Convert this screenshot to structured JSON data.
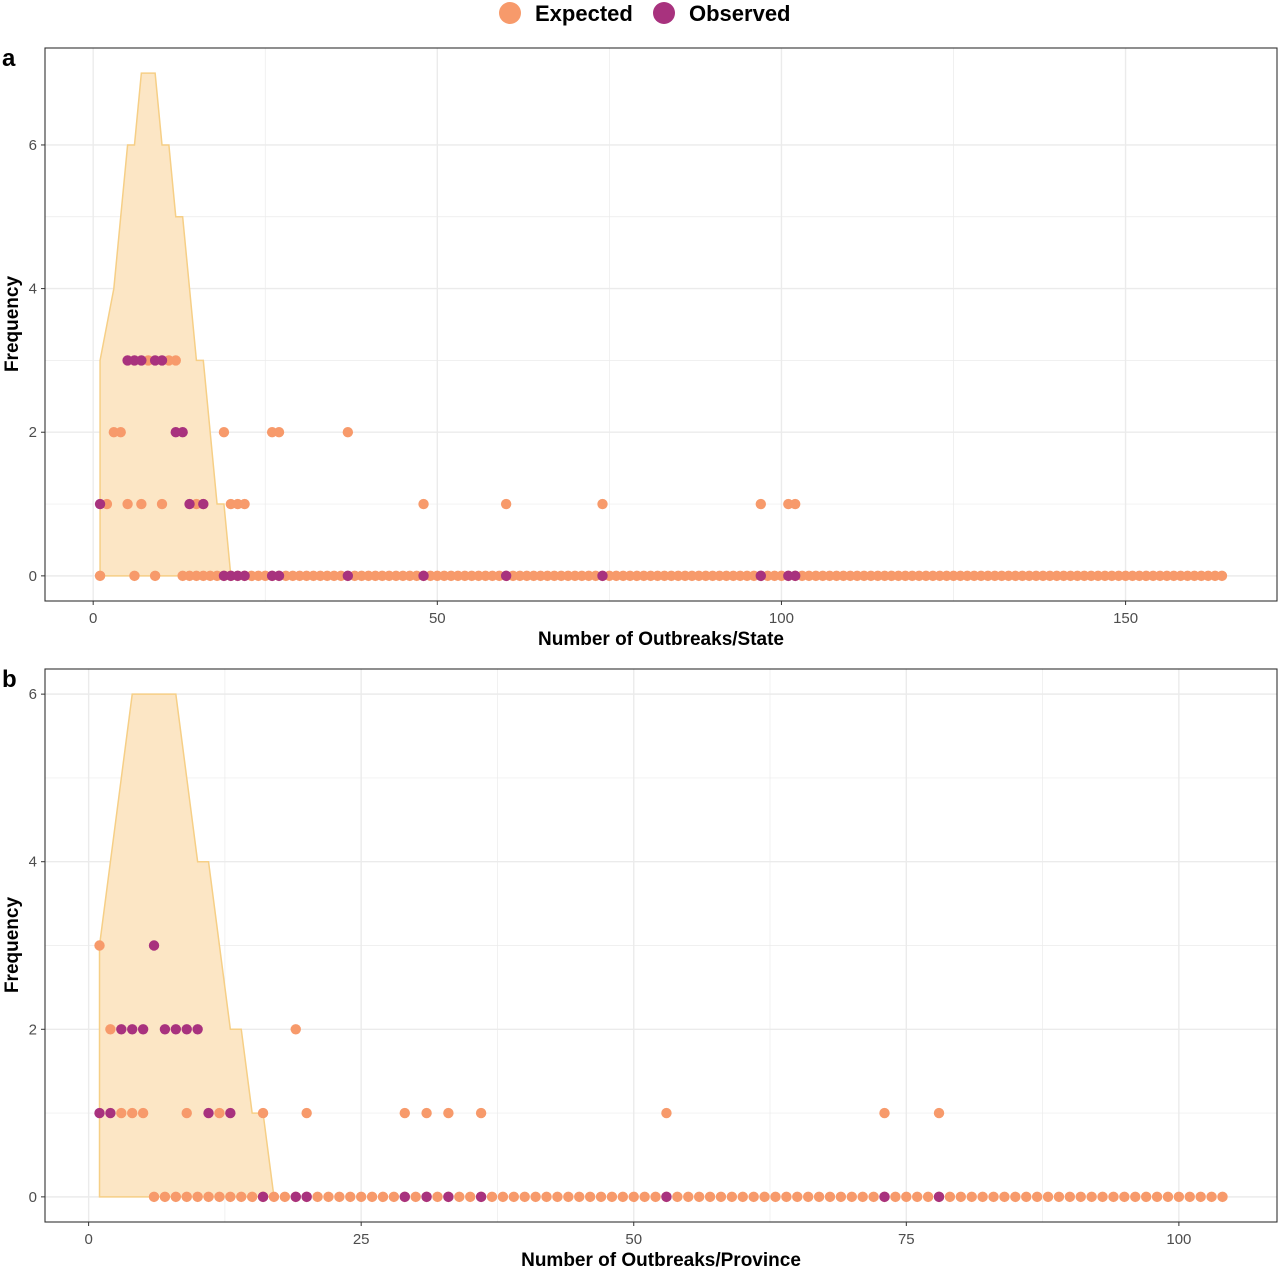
{
  "legend": {
    "items": [
      {
        "label": "Expected",
        "color": "#F79A6B"
      },
      {
        "label": "Observed",
        "color": "#A8327E"
      }
    ]
  },
  "colors": {
    "band_fill": "#FCE6C5",
    "band_line": "#F6CF86",
    "grid": "#EBEBEB"
  },
  "chart_data": [
    {
      "type": "scatter",
      "panel_label": "a",
      "xlabel": "Number of Outbreaks/State",
      "ylabel": "Frequency",
      "xlim": [
        -7,
        172
      ],
      "ylim": [
        -0.35,
        7.35
      ],
      "xticks": [
        0,
        50,
        100,
        150
      ],
      "yticks": [
        0,
        2,
        4,
        6
      ],
      "grid": true,
      "legend_position": "top",
      "range_band": {
        "x": [
          1,
          3,
          4,
          5,
          6,
          7,
          8,
          9,
          10,
          11,
          12,
          13,
          14,
          15,
          16,
          17,
          18,
          19,
          20,
          21
        ],
        "y": [
          3,
          4,
          5,
          6,
          6,
          7,
          7,
          7,
          6,
          6,
          5,
          5,
          4,
          3,
          3,
          2,
          1,
          1,
          0,
          0
        ]
      },
      "series": [
        {
          "name": "Expected",
          "x_zero_range": [
            15,
            164
          ],
          "points": [
            [
              1,
              0
            ],
            [
              6,
              0
            ],
            [
              9,
              0
            ],
            [
              13,
              0
            ],
            [
              14,
              0
            ],
            [
              2,
              1
            ],
            [
              5,
              1
            ],
            [
              7,
              1
            ],
            [
              10,
              1
            ],
            [
              15,
              1
            ],
            [
              16,
              1
            ],
            [
              20,
              1
            ],
            [
              21,
              1
            ],
            [
              22,
              1
            ],
            [
              48,
              1
            ],
            [
              60,
              1
            ],
            [
              74,
              1
            ],
            [
              97,
              1
            ],
            [
              101,
              1
            ],
            [
              102,
              1
            ],
            [
              3,
              2
            ],
            [
              4,
              2
            ],
            [
              19,
              2
            ],
            [
              26,
              2
            ],
            [
              27,
              2
            ],
            [
              37,
              2
            ],
            [
              8,
              3
            ],
            [
              11,
              3
            ],
            [
              12,
              3
            ]
          ]
        },
        {
          "name": "Observed",
          "points": [
            [
              19,
              0
            ],
            [
              20,
              0
            ],
            [
              21,
              0
            ],
            [
              22,
              0
            ],
            [
              26,
              0
            ],
            [
              27,
              0
            ],
            [
              37,
              0
            ],
            [
              48,
              0
            ],
            [
              60,
              0
            ],
            [
              74,
              0
            ],
            [
              97,
              0
            ],
            [
              101,
              0
            ],
            [
              102,
              0
            ],
            [
              1,
              1
            ],
            [
              14,
              1
            ],
            [
              16,
              1
            ],
            [
              12,
              2
            ],
            [
              13,
              2
            ],
            [
              5,
              3
            ],
            [
              6,
              3
            ],
            [
              7,
              3
            ],
            [
              9,
              3
            ],
            [
              10,
              3
            ]
          ]
        }
      ]
    },
    {
      "type": "scatter",
      "panel_label": "b",
      "xlabel": "Number of Outbreaks/Province",
      "ylabel": "Frequency",
      "xlim": [
        -4,
        109
      ],
      "ylim": [
        -0.3,
        6.3
      ],
      "xticks": [
        0,
        25,
        50,
        75,
        100
      ],
      "yticks": [
        0,
        2,
        4,
        6
      ],
      "grid": true,
      "range_band": {
        "x": [
          1,
          2,
          3,
          4,
          5,
          6,
          7,
          8,
          9,
          10,
          11,
          12,
          13,
          14,
          15,
          16,
          17
        ],
        "y": [
          3,
          4,
          5,
          6,
          6,
          6,
          6,
          6,
          5,
          4,
          4,
          3,
          2,
          2,
          1,
          1,
          0
        ]
      },
      "series": [
        {
          "name": "Expected",
          "x_zero_range": [
            6,
            104
          ],
          "points": [
            [
              3,
              1
            ],
            [
              4,
              1
            ],
            [
              5,
              1
            ],
            [
              9,
              1
            ],
            [
              12,
              1
            ],
            [
              16,
              1
            ],
            [
              20,
              1
            ],
            [
              29,
              1
            ],
            [
              31,
              1
            ],
            [
              33,
              1
            ],
            [
              36,
              1
            ],
            [
              53,
              1
            ],
            [
              73,
              1
            ],
            [
              78,
              1
            ],
            [
              2,
              2
            ],
            [
              19,
              2
            ],
            [
              1,
              3
            ]
          ]
        },
        {
          "name": "Observed",
          "points": [
            [
              16,
              0
            ],
            [
              19,
              0
            ],
            [
              20,
              0
            ],
            [
              29,
              0
            ],
            [
              31,
              0
            ],
            [
              33,
              0
            ],
            [
              36,
              0
            ],
            [
              53,
              0
            ],
            [
              73,
              0
            ],
            [
              78,
              0
            ],
            [
              1,
              1
            ],
            [
              2,
              1
            ],
            [
              11,
              1
            ],
            [
              13,
              1
            ],
            [
              3,
              2
            ],
            [
              4,
              2
            ],
            [
              5,
              2
            ],
            [
              7,
              2
            ],
            [
              8,
              2
            ],
            [
              9,
              2
            ],
            [
              10,
              2
            ],
            [
              6,
              3
            ]
          ]
        }
      ]
    }
  ]
}
